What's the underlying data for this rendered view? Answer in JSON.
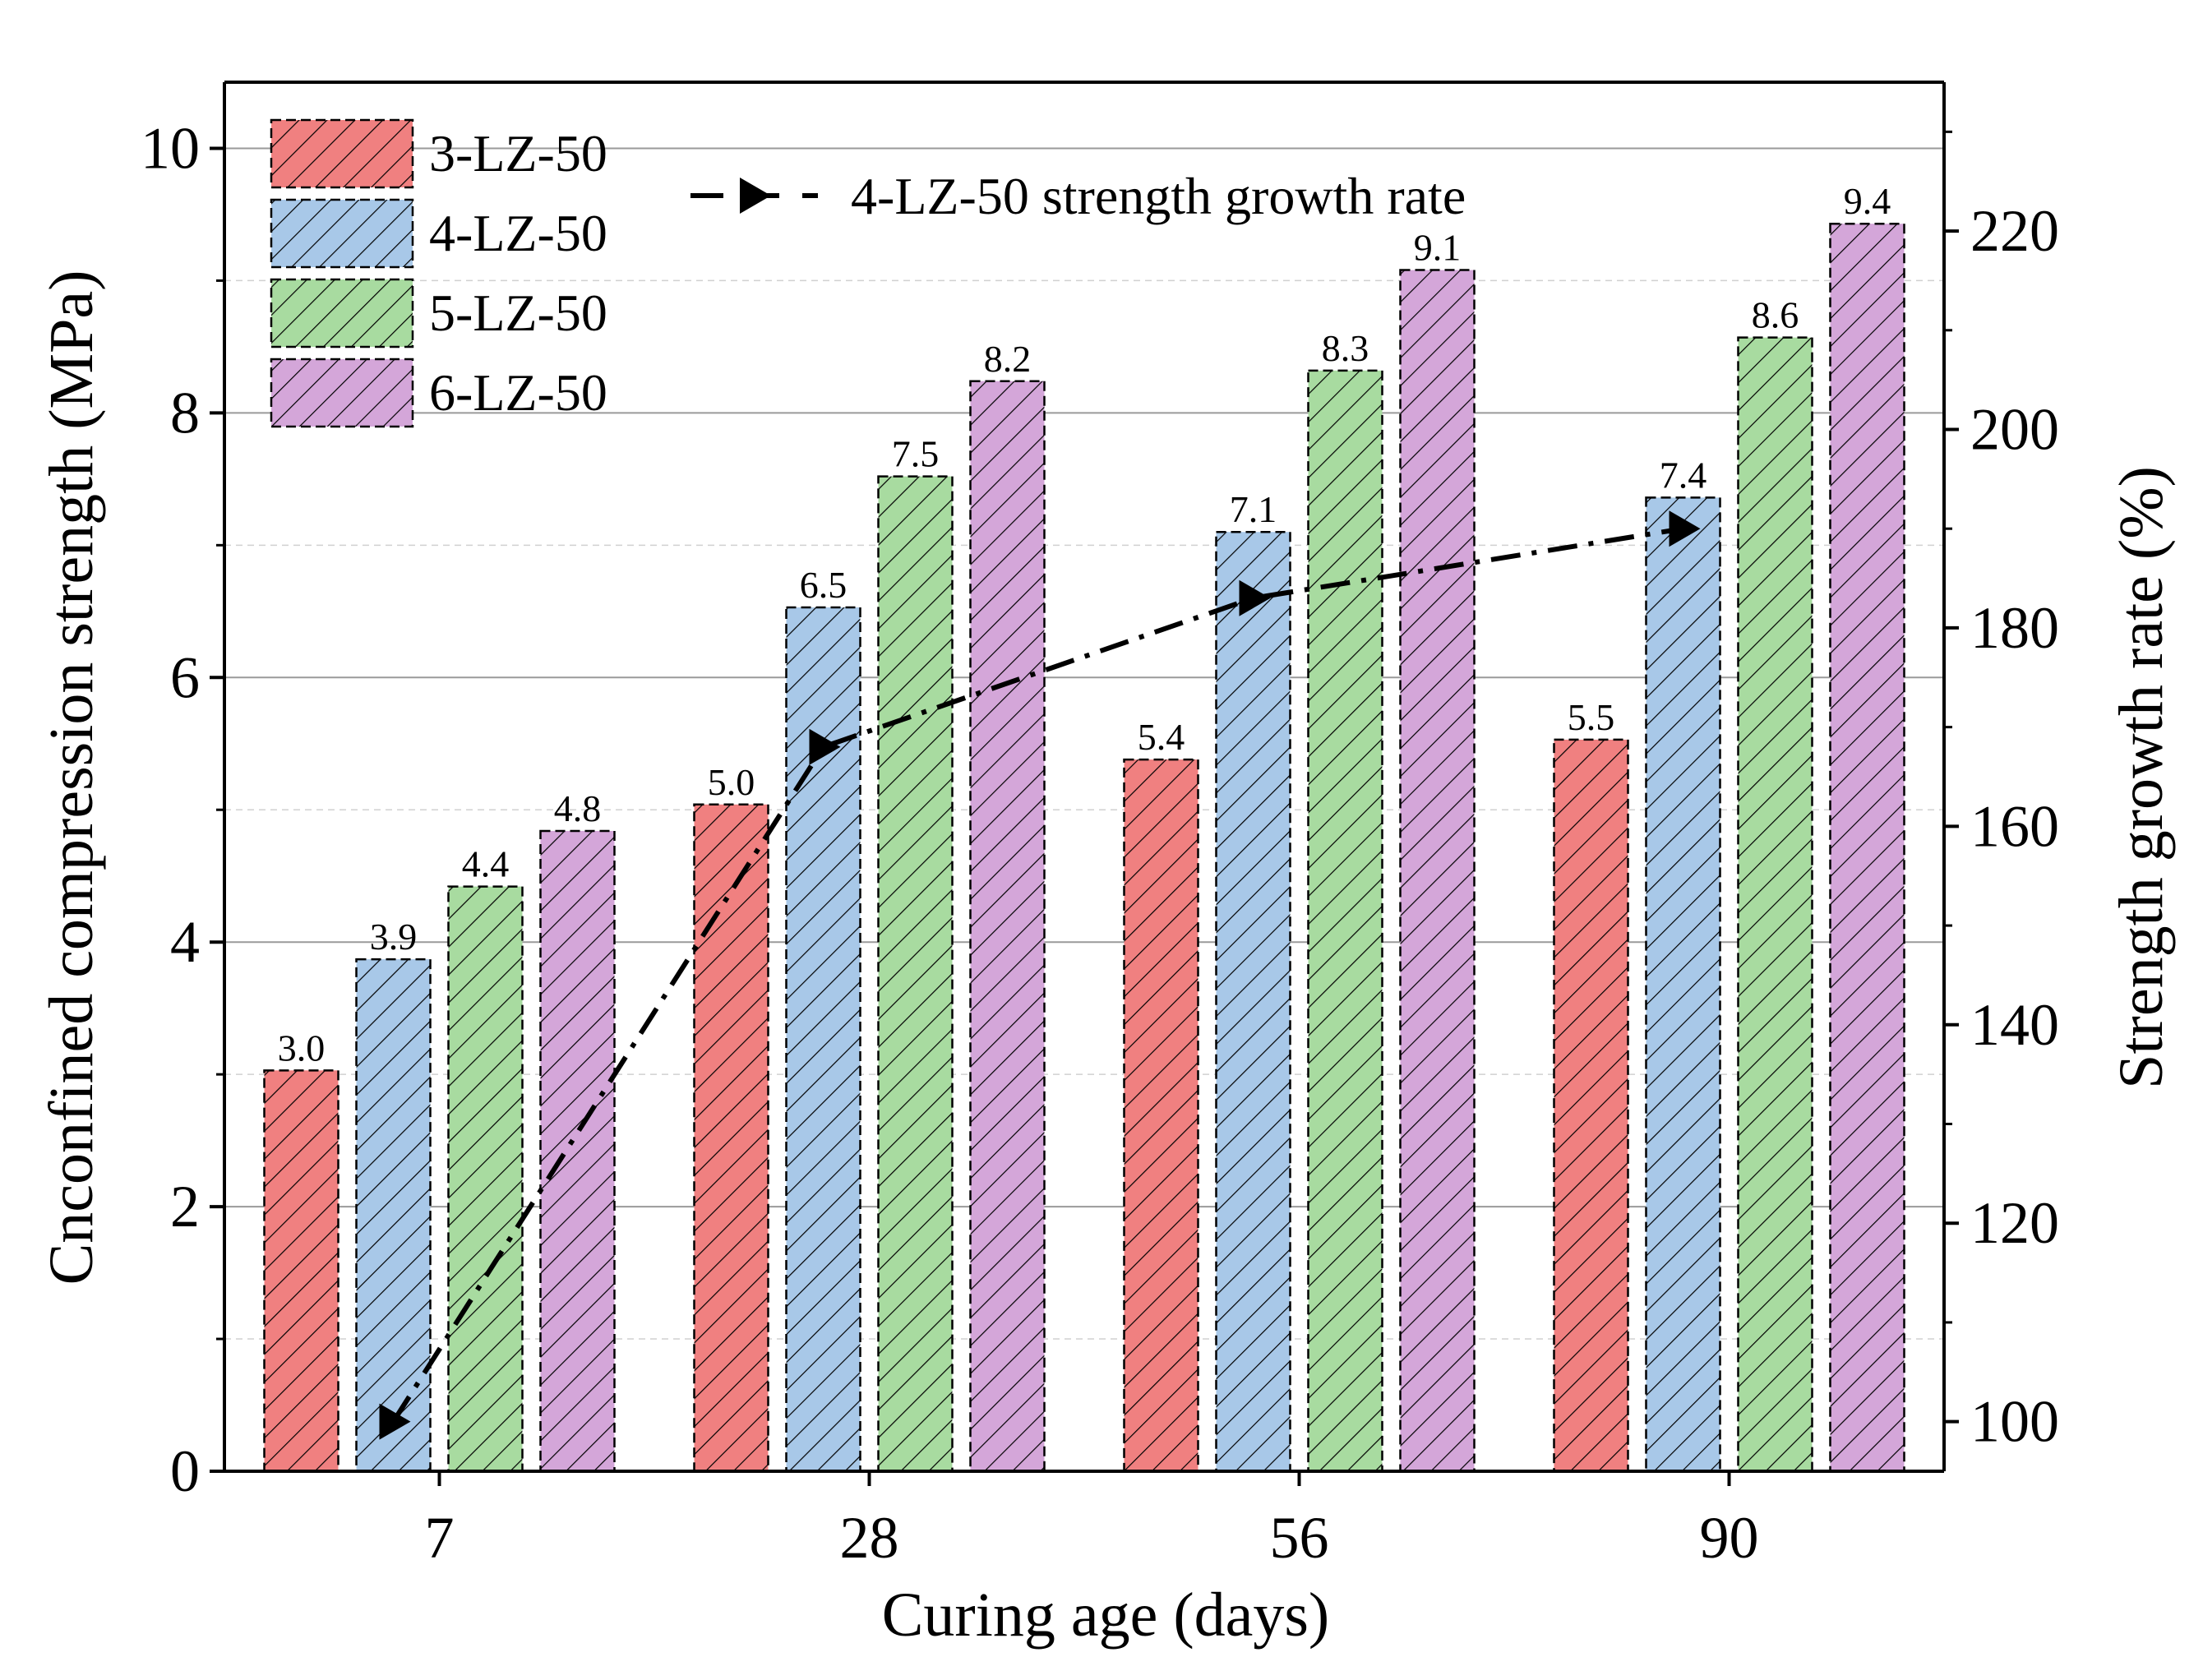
{
  "chart_data": {
    "type": "bar",
    "title": "",
    "xlabel": "Curing age (days)",
    "ylabel": "Cnconfined compression strength (MPa)",
    "ylabel_right": "Strength growth rate (%)",
    "categories": [
      "7",
      "28",
      "56",
      "90"
    ],
    "ylim": [
      0,
      10.5
    ],
    "y_ticks": [
      "0",
      "2",
      "4",
      "6",
      "8",
      "10"
    ],
    "y2lim": [
      95,
      235
    ],
    "y2_ticks": [
      "100",
      "120",
      "140",
      "160",
      "180",
      "200",
      "220"
    ],
    "legend_position": "top-left",
    "series": [
      {
        "name": "3-LZ-50",
        "color": "#f08080",
        "values": [
          3.03,
          5.04,
          5.38,
          5.53
        ],
        "labels": [
          "3.0",
          "5.0",
          "5.4",
          "5.5"
        ]
      },
      {
        "name": "4-LZ-50",
        "color": "#a8c8e8",
        "values": [
          3.87,
          6.53,
          7.1,
          7.36
        ],
        "labels": [
          "3.9",
          "6.5",
          "7.1",
          "7.4"
        ]
      },
      {
        "name": "5-LZ-50",
        "color": "#a8dba0",
        "values": [
          4.42,
          7.52,
          8.32,
          8.57
        ],
        "labels": [
          "4.4",
          "7.5",
          "8.3",
          "8.6"
        ]
      },
      {
        "name": "6-LZ-50",
        "color": "#d4a6d9",
        "values": [
          4.84,
          8.24,
          9.08,
          9.43
        ],
        "labels": [
          "4.8",
          "8.2",
          "9.1",
          "9.4"
        ]
      }
    ],
    "line_series": {
      "name": "4-LZ-50 strength growth rate",
      "axis": "right",
      "color": "#000000",
      "values": [
        100,
        168,
        183,
        190
      ]
    }
  }
}
